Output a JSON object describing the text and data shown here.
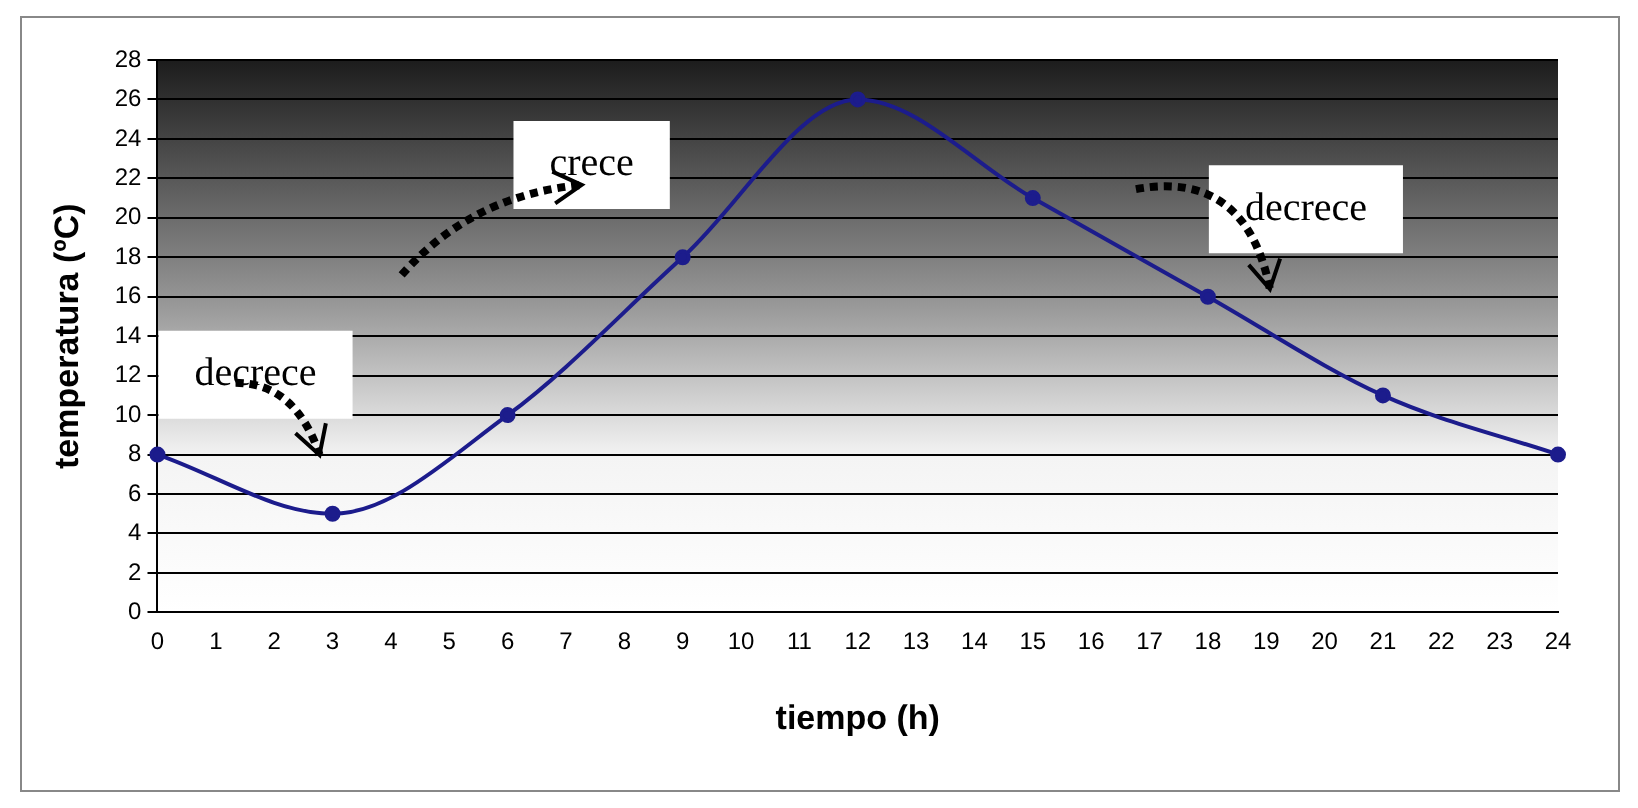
{
  "chart_data": {
    "type": "line",
    "xlabel": "tiempo (h)",
    "ylabel": "temperatura (ºC)",
    "x": [
      0,
      3,
      6,
      9,
      12,
      15,
      18,
      21,
      24
    ],
    "series": [
      {
        "color": "#1c1c8c",
        "values": [
          8,
          5,
          10,
          18,
          26,
          21,
          16,
          11,
          8
        ]
      }
    ],
    "xlim": [
      0,
      24
    ],
    "xticks": [
      0,
      1,
      2,
      3,
      4,
      5,
      6,
      7,
      8,
      9,
      10,
      11,
      12,
      13,
      14,
      15,
      16,
      17,
      18,
      19,
      20,
      21,
      22,
      23,
      24
    ],
    "ylim": [
      0,
      28
    ],
    "yticks": [
      0,
      2,
      4,
      6,
      8,
      10,
      12,
      14,
      16,
      18,
      20,
      22,
      24,
      26,
      28
    ],
    "grid": "y",
    "marker": "circle",
    "line_style": "solid",
    "legend": false,
    "annotations": [
      "decrece",
      "crece",
      "decrece"
    ]
  }
}
